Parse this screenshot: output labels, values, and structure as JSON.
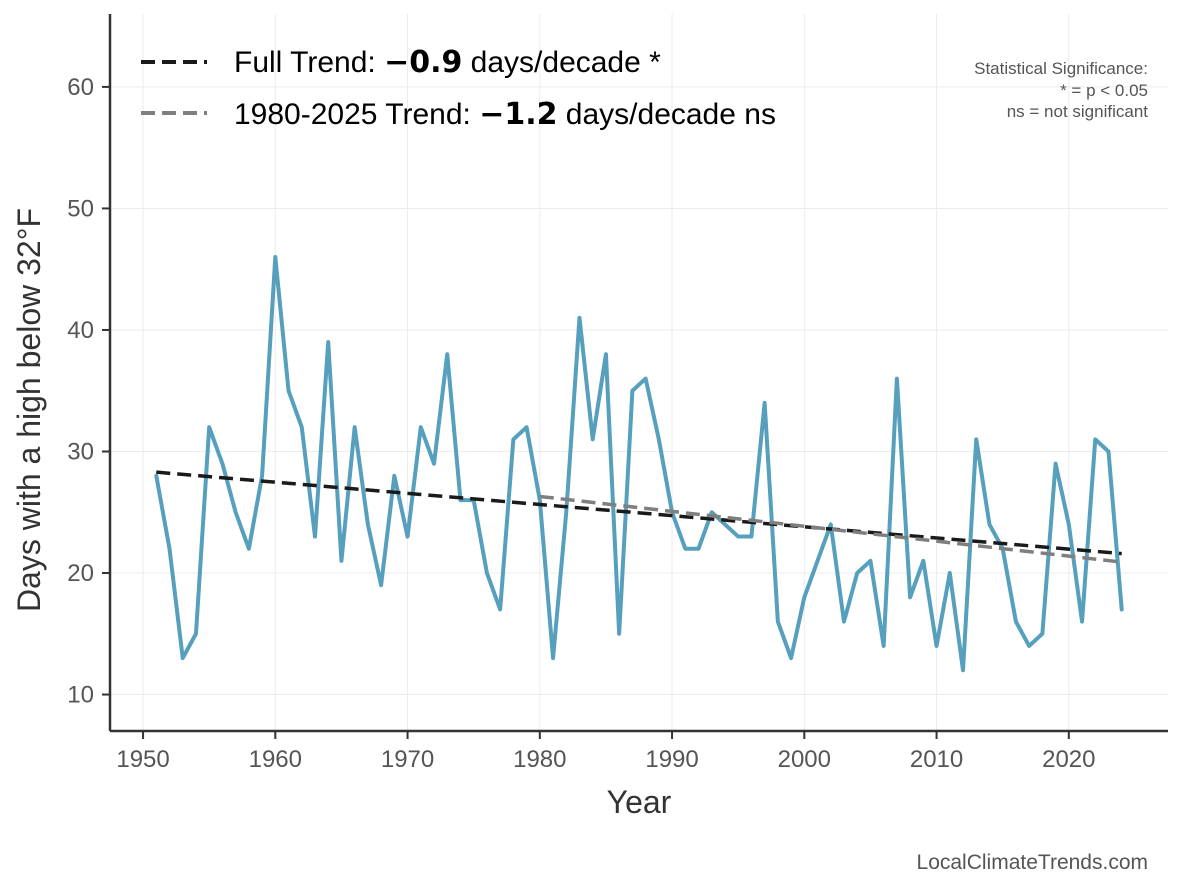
{
  "chart_data": {
    "type": "line",
    "xlabel": "Year",
    "ylabel": "Days with a high below 32°F",
    "xlim": [
      1947.5,
      2027.5
    ],
    "ylim": [
      7,
      66
    ],
    "xticks": [
      1950,
      1960,
      1970,
      1980,
      1990,
      2000,
      2010,
      2020
    ],
    "yticks": [
      10,
      20,
      30,
      40,
      50,
      60
    ],
    "grid": true,
    "series": [
      {
        "name": "Days with a high below 32°F",
        "color": "#569fbd",
        "x": [
          1951,
          1952,
          1953,
          1954,
          1955,
          1956,
          1957,
          1958,
          1959,
          1960,
          1961,
          1962,
          1963,
          1964,
          1965,
          1966,
          1967,
          1968,
          1969,
          1970,
          1971,
          1972,
          1973,
          1974,
          1975,
          1976,
          1977,
          1978,
          1979,
          1980,
          1981,
          1982,
          1983,
          1984,
          1985,
          1986,
          1987,
          1988,
          1989,
          1990,
          1991,
          1992,
          1993,
          1994,
          1995,
          1996,
          1997,
          1998,
          1999,
          2000,
          2001,
          2002,
          2003,
          2004,
          2005,
          2006,
          2007,
          2008,
          2009,
          2010,
          2011,
          2012,
          2013,
          2014,
          2015,
          2016,
          2017,
          2018,
          2019,
          2020,
          2021,
          2022,
          2023,
          2024
        ],
        "values": [
          28,
          22,
          13,
          15,
          32,
          29,
          25,
          22,
          28,
          46,
          35,
          32,
          23,
          39,
          21,
          32,
          24,
          19,
          28,
          23,
          32,
          29,
          38,
          26,
          26,
          20,
          17,
          31,
          32,
          26,
          13,
          25,
          41,
          31,
          38,
          15,
          35,
          36,
          31,
          25,
          22,
          22,
          25,
          24,
          23,
          23,
          34,
          16,
          13,
          18,
          21,
          24,
          16,
          20,
          21,
          14,
          36,
          18,
          21,
          14,
          20,
          12,
          31,
          24,
          22,
          16,
          14,
          15,
          29,
          24,
          16,
          31,
          30,
          17
        ]
      }
    ],
    "trends": [
      {
        "name": "Full Trend",
        "legend_prefix": "Full Trend: ",
        "legend_value": "−0.9",
        "legend_suffix": " days/decade *",
        "color": "#1a1a1a",
        "style": "dashed",
        "x": [
          1951,
          2024
        ],
        "values": [
          28.3,
          21.6
        ]
      },
      {
        "name": "1980-2025 Trend",
        "legend_prefix": "1980-2025 Trend: ",
        "legend_value": "−1.2",
        "legend_suffix": " days/decade ns",
        "color": "#7f7f7f",
        "style": "dashed",
        "x": [
          1980,
          2024
        ],
        "values": [
          26.3,
          20.9
        ]
      }
    ],
    "significance_note": {
      "title": "Statistical Significance:",
      "line1": "* = p < 0.05",
      "line2": "ns = not significant"
    },
    "credit": "LocalClimateTrends.com"
  }
}
